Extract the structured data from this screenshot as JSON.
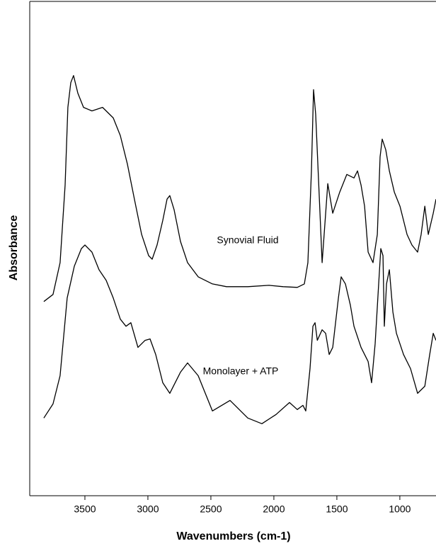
{
  "chart_data": {
    "type": "line",
    "xlabel": "Wavenumbers (cm-1)",
    "ylabel": "Absorbance",
    "annotations": [
      "Synovial Fluid",
      "Monolayer + ATP"
    ],
    "xlim": [
      3938,
      713
    ],
    "ylim": [
      0,
      700
    ],
    "xticks": [
      3500,
      3000,
      2500,
      2000,
      1500,
      1000
    ],
    "series": [
      {
        "name": "Synovial Fluid",
        "color": "#000000",
        "x": [
          3826,
          3753,
          3697,
          3657,
          3635,
          3612,
          3590,
          3556,
          3511,
          3444,
          3360,
          3275,
          3219,
          3163,
          3107,
          3050,
          2994,
          2966,
          2927,
          2882,
          2848,
          2826,
          2792,
          2741,
          2685,
          2601,
          2488,
          2376,
          2207,
          2039,
          1926,
          1814,
          1758,
          1730,
          1702,
          1685,
          1668,
          1634,
          1617,
          1572,
          1533,
          1477,
          1421,
          1364,
          1336,
          1308,
          1280,
          1252,
          1213,
          1179,
          1157,
          1140,
          1112,
          1083,
          1044,
          999,
          943,
          904,
          859,
          831,
          802,
          774,
          735,
          713
        ],
        "values": [
          275,
          285,
          330,
          440,
          550,
          585,
          595,
          570,
          550,
          545,
          550,
          535,
          510,
          470,
          420,
          370,
          340,
          335,
          355,
          390,
          420,
          425,
          405,
          360,
          330,
          310,
          300,
          296,
          296,
          298,
          296,
          295,
          300,
          330,
          460,
          575,
          540,
          400,
          330,
          442,
          400,
          430,
          455,
          450,
          460,
          440,
          410,
          345,
          330,
          370,
          480,
          505,
          490,
          460,
          430,
          410,
          370,
          355,
          345,
          370,
          410,
          370,
          400,
          420
        ]
      },
      {
        "name": "Monolayer + ATP",
        "color": "#000000",
        "x": [
          3826,
          3753,
          3697,
          3641,
          3584,
          3528,
          3500,
          3444,
          3388,
          3331,
          3275,
          3219,
          3174,
          3135,
          3079,
          3022,
          2983,
          2938,
          2882,
          2826,
          2741,
          2685,
          2601,
          2488,
          2348,
          2207,
          2095,
          1983,
          1876,
          1814,
          1769,
          1747,
          1713,
          1690,
          1673,
          1655,
          1617,
          1589,
          1561,
          1533,
          1488,
          1466,
          1432,
          1393,
          1364,
          1308,
          1252,
          1224,
          1196,
          1168,
          1151,
          1134,
          1123,
          1106,
          1083,
          1055,
          1027,
          971,
          915,
          859,
          802,
          763,
          735,
          713
        ],
        "values": [
          110,
          130,
          170,
          280,
          325,
          350,
          355,
          345,
          320,
          305,
          280,
          250,
          240,
          245,
          210,
          220,
          222,
          200,
          160,
          145,
          175,
          188,
          170,
          120,
          135,
          110,
          102,
          115,
          132,
          122,
          128,
          120,
          180,
          240,
          245,
          220,
          235,
          230,
          200,
          210,
          280,
          310,
          300,
          270,
          240,
          210,
          190,
          160,
          215,
          300,
          350,
          340,
          240,
          300,
          320,
          260,
          230,
          200,
          180,
          145,
          155,
          200,
          230,
          220
        ]
      }
    ]
  }
}
